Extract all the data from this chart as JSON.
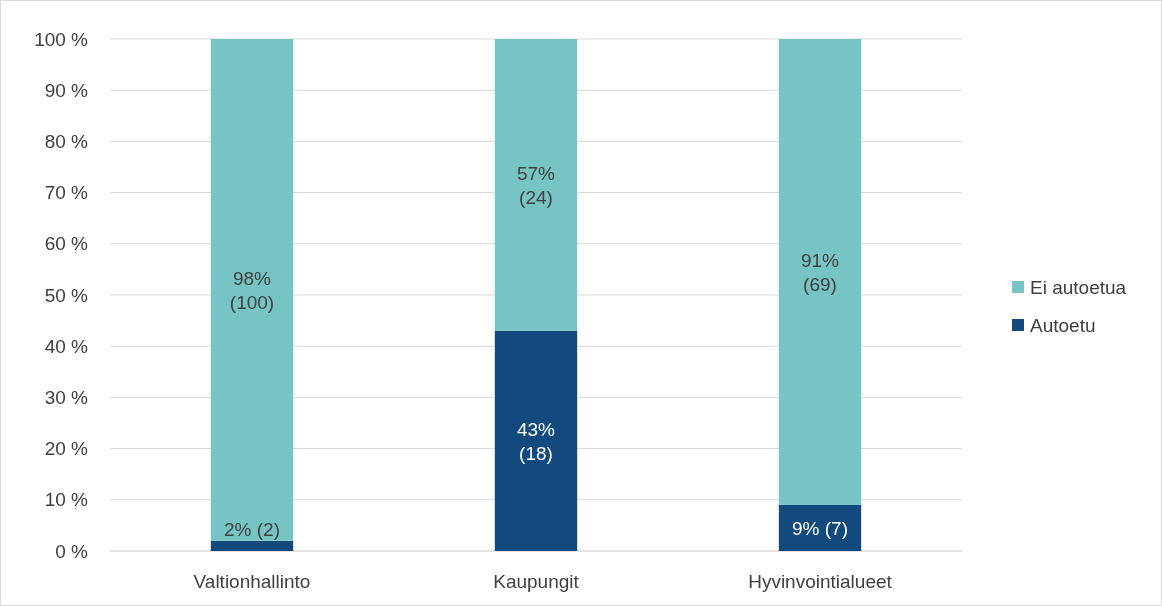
{
  "chart_data": {
    "type": "bar",
    "stacked": true,
    "categories": [
      "Valtionhallinto",
      "Kaupungit",
      "Hyvinvointialueet"
    ],
    "series": [
      {
        "name": "Autoetu",
        "color": "#124a7e",
        "values": [
          2,
          43,
          9
        ],
        "value_labels": [
          "2% (2)",
          "43%\n(18)",
          "9% (7)"
        ]
      },
      {
        "name": "Ei autoetua",
        "color": "#76c4c4",
        "values": [
          98,
          57,
          91
        ],
        "value_labels": [
          "98%\n(100)",
          "57%\n(24)",
          "91%\n(69)"
        ]
      }
    ],
    "ylim": [
      0,
      100
    ],
    "yticks": [
      {
        "value": 0,
        "label": "0 %"
      },
      {
        "value": 10,
        "label": "10 %"
      },
      {
        "value": 20,
        "label": "20 %"
      },
      {
        "value": 30,
        "label": "30 %"
      },
      {
        "value": 40,
        "label": "40 %"
      },
      {
        "value": 50,
        "label": "50 %"
      },
      {
        "value": 60,
        "label": "60 %"
      },
      {
        "value": 70,
        "label": "70 %"
      },
      {
        "value": 80,
        "label": "80 %"
      },
      {
        "value": 90,
        "label": "90 %"
      },
      {
        "value": 100,
        "label": "100 %"
      }
    ],
    "grid": "y",
    "legend": "right"
  }
}
